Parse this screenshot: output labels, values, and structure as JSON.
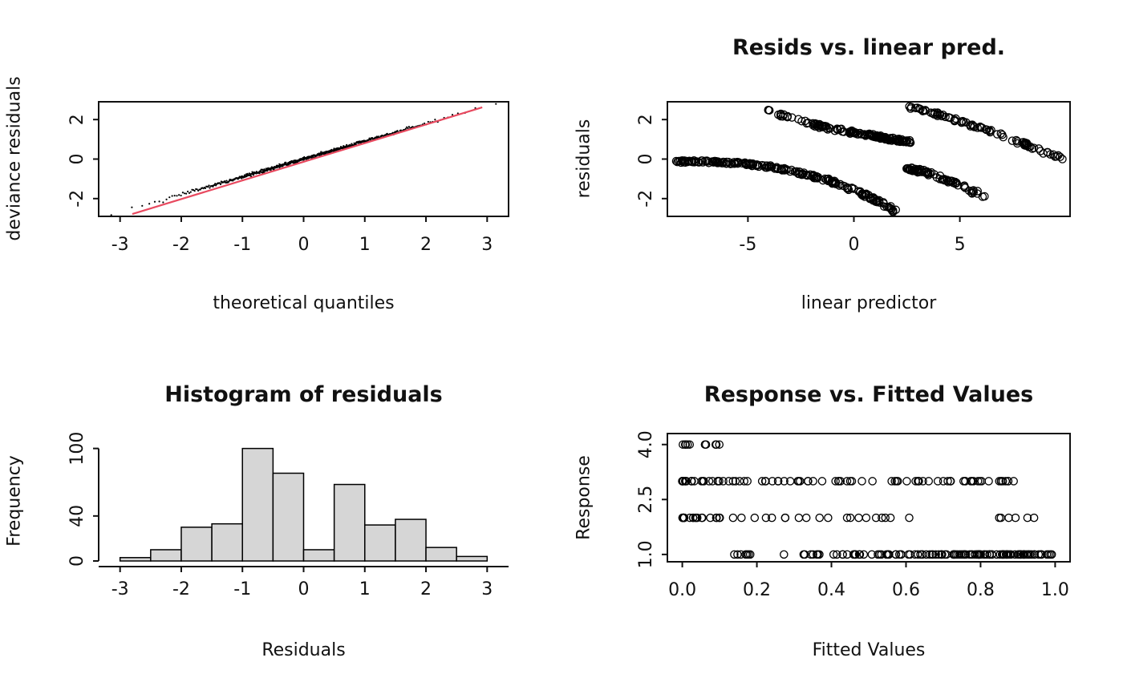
{
  "page": {
    "background": "#ffffff",
    "text_color": "#111111"
  },
  "chart_data": [
    {
      "type": "scatter",
      "panel": "top-left",
      "title": "",
      "xlabel": "theoretical quantiles",
      "ylabel": "deviance residuals",
      "xlim": [
        -3.35,
        3.35
      ],
      "ylim": [
        -2.9,
        2.9
      ],
      "xticks": [
        -3,
        -2,
        -1,
        0,
        1,
        2,
        3
      ],
      "xtick_labels": [
        "-3",
        "-2",
        "-1",
        "0",
        "1",
        "2",
        "3"
      ],
      "yticks": [
        -2,
        0,
        2
      ],
      "ytick_labels": [
        "-2",
        "0",
        "2"
      ],
      "box": true,
      "marker": "dot",
      "grid": false,
      "qq_points": {
        "n": 600,
        "slope": 0.9,
        "noise": 0.04
      },
      "ref_line": {
        "x1": -2.8,
        "y1": -2.78,
        "x2": 2.92,
        "y2": 2.62,
        "color": "#e8495f"
      }
    },
    {
      "type": "scatter",
      "panel": "top-right",
      "title": "Resids vs. linear pred.",
      "xlabel": "linear predictor",
      "ylabel": "residuals",
      "xlim": [
        -8.8,
        10.2
      ],
      "ylim": [
        -2.9,
        2.9
      ],
      "xticks": [
        -5,
        0,
        5
      ],
      "xtick_labels": [
        "-5",
        "0",
        "5"
      ],
      "yticks": [
        -2,
        0,
        2
      ],
      "ytick_labels": [
        "-2",
        "0",
        "2"
      ],
      "box": true,
      "marker": "open-circle",
      "grid": false,
      "bands": [
        {
          "n": 150,
          "x0": -4.3,
          "x1": 2.6,
          "y0": 2.85,
          "y1": 0.88,
          "shape": 0.55,
          "density": 0.6,
          "jx": 0.15,
          "jy": 0.07
        },
        {
          "n": 210,
          "x0": -8.4,
          "x1": 2.1,
          "y0": -0.12,
          "y1": -2.72,
          "shape": 2.6,
          "density": 1.0,
          "jx": 0.15,
          "jy": 0.06
        },
        {
          "n": 70,
          "x0": 2.55,
          "x1": 6.4,
          "y0": -0.5,
          "y1": -2.05,
          "shape": 1.4,
          "density": 1.5,
          "jx": 0.12,
          "jy": 0.08
        },
        {
          "n": 90,
          "x0": 2.7,
          "x1": 9.8,
          "y0": 2.62,
          "y1": 0.05,
          "shape": 1.15,
          "density": 1.25,
          "jx": 0.12,
          "jy": 0.08
        }
      ]
    },
    {
      "type": "bar",
      "panel": "bottom-left",
      "title": "Histogram of residuals",
      "xlabel": "Residuals",
      "ylabel": "Frequency",
      "breaks": [
        -3,
        -2.5,
        -2,
        -1.5,
        -1,
        -0.5,
        0,
        0.5,
        1,
        1.5,
        2,
        2.5,
        3
      ],
      "counts": [
        3,
        10,
        30,
        33,
        100,
        78,
        10,
        68,
        32,
        37,
        12,
        4
      ],
      "xlim": [
        -3.35,
        3.35
      ],
      "ylim": [
        0,
        104
      ],
      "xticks": [
        -3,
        -2,
        -1,
        0,
        1,
        2,
        3
      ],
      "xtick_labels": [
        "-3",
        "-2",
        "-1",
        "0",
        "1",
        "2",
        "3"
      ],
      "yticks": [
        0,
        40,
        100
      ],
      "ytick_labels": [
        "0",
        "40",
        "100"
      ],
      "box": false,
      "grid": false,
      "bar_fill": "#d6d6d6",
      "bar_stroke": "#000000"
    },
    {
      "type": "scatter",
      "panel": "bottom-right",
      "title": "Response vs. Fitted Values",
      "xlabel": "Fitted Values",
      "ylabel": "Response",
      "xlim": [
        -0.04,
        1.04
      ],
      "ylim": [
        0.8,
        4.3
      ],
      "xticks": [
        0,
        0.2,
        0.4,
        0.6,
        0.8,
        1
      ],
      "xtick_labels": [
        "0.0",
        "0.2",
        "0.4",
        "0.6",
        "0.8",
        "1.0"
      ],
      "yticks": [
        1,
        2.5,
        4
      ],
      "ytick_labels": [
        "1.0",
        "2.5",
        "4.0"
      ],
      "box": true,
      "marker": "open-circle",
      "grid": false,
      "levels": [
        {
          "response": 4,
          "n": 11,
          "xmin": 0.0,
          "xmax": 0.1,
          "skew": 1.6
        },
        {
          "response": 3,
          "n": 88,
          "xmin": 0.0,
          "xmax": 0.92,
          "skew": 1.9
        },
        {
          "response": 2,
          "n": 50,
          "xmin": 0.0,
          "xmax": 0.95,
          "skew": 2.1
        },
        {
          "response": 1,
          "n": 130,
          "xmin": 0.05,
          "xmax": 1.0,
          "skew": 0.45
        }
      ]
    }
  ]
}
